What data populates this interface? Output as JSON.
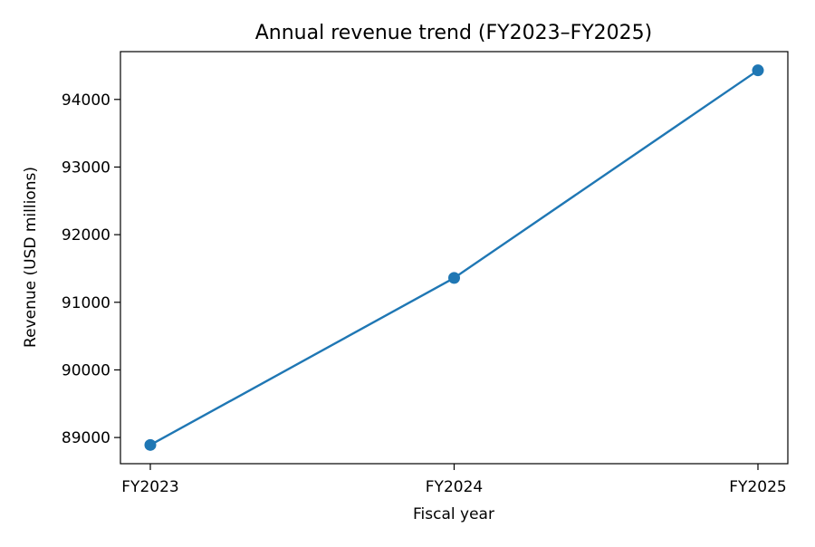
{
  "chart_data": {
    "type": "line",
    "title": "Annual revenue trend (FY2023–FY2025)",
    "xlabel": "Fiscal year",
    "ylabel": "Revenue (USD millions)",
    "categories": [
      "FY2023",
      "FY2024",
      "FY2025"
    ],
    "series": [
      {
        "values": [
          88890,
          91360,
          94430
        ],
        "color": "#1f77b4",
        "marker": "circle"
      }
    ],
    "yticks": [
      89000,
      90000,
      91000,
      92000,
      93000,
      94000
    ],
    "ylim": [
      88613,
      94707
    ],
    "grid": false,
    "legend": "none"
  }
}
